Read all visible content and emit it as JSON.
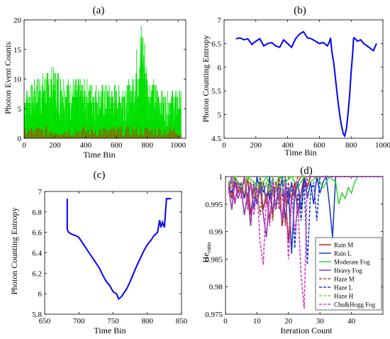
{
  "chart_data": [
    {
      "panel_label": "(a)",
      "type": "bar",
      "xlabel": "Time Bin",
      "ylabel": "Photon Event Counts",
      "xlim": [
        0,
        1050
      ],
      "ylim": [
        0,
        20
      ],
      "xticks": [
        0,
        200,
        400,
        600,
        800,
        1000
      ],
      "yticks": [
        0,
        5,
        10,
        15,
        20
      ],
      "series": [
        {
          "color": "#00e000",
          "description_points": {
            "x": [
              0,
              100,
              200,
              300,
              400,
              500,
              600,
              700,
              760,
              780,
              800,
              900,
              1000
            ],
            "y": [
              8,
              11,
              12,
              10,
              10,
              9,
              9,
              10,
              20,
              18,
              11,
              8,
              8
            ]
          }
        },
        {
          "color": "#ff0000"
        }
      ]
    },
    {
      "panel_label": "(b)",
      "type": "line",
      "xlabel": "Time Bin",
      "ylabel": "Photon Counting Entropy",
      "xlim": [
        0,
        1000
      ],
      "ylim": [
        4.5,
        7
      ],
      "xticks": [
        0,
        200,
        400,
        600,
        800,
        1000
      ],
      "yticks": [
        4.5,
        5,
        5.5,
        6,
        6.5,
        7
      ],
      "series": [
        {
          "color": "#0000ff",
          "x": [
            75,
            100,
            125,
            150,
            175,
            200,
            225,
            250,
            275,
            300,
            325,
            350,
            375,
            400,
            425,
            450,
            475,
            500,
            525,
            550,
            575,
            600,
            625,
            650,
            665,
            670,
            680,
            690,
            700,
            710,
            720,
            730,
            740,
            750,
            760,
            770,
            780,
            790,
            800,
            810,
            815,
            820,
            840,
            860,
            880,
            900,
            920,
            940,
            960
          ],
          "y": [
            6.6,
            6.62,
            6.58,
            6.6,
            6.48,
            6.55,
            6.6,
            6.45,
            6.5,
            6.52,
            6.45,
            6.42,
            6.58,
            6.5,
            6.42,
            6.6,
            6.7,
            6.75,
            6.62,
            6.6,
            6.55,
            6.5,
            6.52,
            6.45,
            6.55,
            6.62,
            6.3,
            6.1,
            5.8,
            5.5,
            5.2,
            4.95,
            4.75,
            4.6,
            4.55,
            4.7,
            5.0,
            5.4,
            5.9,
            6.3,
            6.6,
            6.62,
            6.55,
            6.58,
            6.5,
            6.45,
            6.4,
            6.35,
            6.5
          ]
        }
      ]
    },
    {
      "panel_label": "(c)",
      "type": "line",
      "xlabel": "Time Bin",
      "ylabel": "Photon Counting Entropy",
      "xlim": [
        650,
        850
      ],
      "ylim": [
        5.8,
        7
      ],
      "xticks": [
        650,
        700,
        750,
        800,
        850
      ],
      "yticks": [
        5.8,
        6,
        6.2,
        6.4,
        6.6,
        6.8,
        7
      ],
      "series": [
        {
          "color": "#0000ff",
          "x": [
            683,
            683,
            685,
            690,
            695,
            700,
            705,
            710,
            715,
            720,
            725,
            730,
            735,
            740,
            745,
            750,
            755,
            758,
            762,
            765,
            770,
            775,
            780,
            785,
            790,
            795,
            800,
            805,
            810,
            815,
            818,
            820,
            822,
            825,
            828,
            832,
            835
          ],
          "y": [
            6.93,
            6.63,
            6.6,
            6.58,
            6.57,
            6.55,
            6.5,
            6.45,
            6.4,
            6.35,
            6.3,
            6.25,
            6.18,
            6.12,
            6.08,
            6.02,
            6.0,
            5.95,
            5.97,
            6.0,
            6.05,
            6.12,
            6.2,
            6.28,
            6.35,
            6.42,
            6.48,
            6.52,
            6.57,
            6.6,
            6.72,
            6.65,
            6.7,
            6.65,
            6.93,
            6.93,
            6.93
          ]
        }
      ]
    },
    {
      "panel_label": "(d)",
      "type": "line",
      "xlabel": "Iteration Count",
      "ylabel": "He",
      "ylabel_sub": "ratio",
      "xlim": [
        0,
        50
      ],
      "ylim": [
        0.975,
        1
      ],
      "xticks": [
        0,
        10,
        20,
        30,
        40
      ],
      "yticks": [
        0.975,
        0.98,
        0.985,
        0.99,
        0.995,
        1
      ],
      "legend_position": "bottom-right",
      "series": [
        {
          "name": "Rain M",
          "color": "#b22222",
          "dash": "solid",
          "x": [
            1,
            2,
            3,
            4,
            5,
            6,
            7,
            8,
            9,
            10,
            11,
            12,
            13,
            14,
            15,
            16,
            17,
            18,
            19,
            20,
            21,
            22,
            23,
            24,
            25,
            26,
            27,
            28,
            50
          ],
          "y": [
            0.999,
            0.996,
            1,
            0.997,
            0.999,
            0.996,
            1,
            0.993,
            0.998,
            0.995,
            0.999,
            0.994,
            0.997,
            0.992,
            0.998,
            0.994,
            1,
            0.991,
            0.997,
            0.988,
            0.996,
            0.999,
            0.993,
            0.997,
            1,
            0.998,
            1,
            1,
            1
          ]
        },
        {
          "name": "Rain L",
          "color": "#1f3cc8",
          "dash": "solid",
          "x": [
            1,
            2,
            3,
            4,
            5,
            6,
            7,
            8,
            9,
            10,
            11,
            12,
            13,
            14,
            15,
            16,
            17,
            18,
            19,
            20,
            21,
            22,
            23,
            24,
            25,
            26,
            27,
            28,
            29,
            30,
            31,
            32,
            33,
            34,
            35,
            50
          ],
          "y": [
            0.998,
            1,
            0.995,
            0.999,
            0.997,
            1,
            0.996,
            0.999,
            0.994,
            1,
            0.997,
            0.999,
            0.995,
            1,
            0.993,
            0.999,
            0.996,
            1,
            0.992,
            0.998,
            0.986,
            0.997,
            0.999,
            0.994,
            1,
            0.996,
            0.999,
            0.995,
            1,
            0.997,
            0.999,
            1,
            0.995,
            0.989,
            1,
            1
          ]
        },
        {
          "name": "Moderate Fog",
          "color": "#3cd23c",
          "dash": "solid",
          "x": [
            1,
            3,
            5,
            7,
            9,
            11,
            13,
            15,
            17,
            19,
            21,
            23,
            25,
            27,
            29,
            31,
            33,
            35,
            36,
            37,
            38,
            39,
            40,
            41,
            42,
            50
          ],
          "y": [
            0.999,
            1,
            0.998,
            1,
            0.999,
            0.998,
            1,
            0.997,
            1,
            0.999,
            1,
            0.998,
            1,
            0.999,
            1,
            0.998,
            1,
            0.999,
            0.995,
            0.997,
            0.996,
            0.998,
            0.997,
            0.999,
            1,
            1
          ]
        },
        {
          "name": "Heavy Fog",
          "color": "#8c3cb4",
          "dash": "solid",
          "x": [
            1,
            2,
            3,
            4,
            5,
            6,
            7,
            8,
            9,
            10,
            11,
            12,
            13,
            14,
            15,
            16,
            17,
            18,
            19,
            20,
            21,
            22,
            23,
            24,
            25,
            50
          ],
          "y": [
            0.998,
            0.994,
            0.999,
            0.996,
            0.998,
            0.993,
            0.997,
            0.991,
            0.999,
            0.995,
            0.998,
            0.993,
            0.989,
            0.997,
            0.993,
            0.999,
            0.996,
            0.992,
            0.998,
            0.995,
            0.999,
            0.996,
            0.999,
            1,
            1,
            1
          ]
        },
        {
          "name": "Haze M",
          "color": "#a0522d",
          "dash": "dashed",
          "x": [
            1,
            2,
            3,
            4,
            5,
            6,
            7,
            8,
            9,
            10,
            11,
            12,
            13,
            14,
            15,
            16,
            17,
            18,
            19,
            20,
            21,
            22,
            23,
            24,
            50
          ],
          "y": [
            0.998,
            0.999,
            0.995,
            0.999,
            0.997,
            1,
            0.995,
            0.999,
            0.996,
            0.998,
            0.993,
            0.999,
            0.995,
            0.998,
            0.992,
            0.999,
            0.994,
            0.997,
            0.991,
            0.999,
            0.995,
            0.998,
            1,
            1,
            1
          ]
        },
        {
          "name": "Haze L",
          "color": "#1f3cc8",
          "dash": "dashed",
          "x": [
            1,
            2,
            3,
            4,
            5,
            6,
            7,
            8,
            9,
            10,
            11,
            12,
            13,
            14,
            15,
            16,
            17,
            18,
            19,
            20,
            21,
            22,
            23,
            24,
            25,
            26,
            27,
            28,
            29,
            30,
            50
          ],
          "y": [
            0.999,
            0.997,
            1,
            0.998,
            0.999,
            0.996,
            1,
            0.998,
            0.999,
            0.995,
            1,
            0.997,
            0.999,
            0.996,
            1,
            0.994,
            0.999,
            0.997,
            1,
            0.995,
            0.999,
            0.987,
            0.997,
            0.992,
            0.999,
            0.984,
            0.997,
            0.999,
            0.992,
            1,
            1
          ]
        },
        {
          "name": "Haze H",
          "color": "#9acd32",
          "dash": "dashed",
          "x": [
            1,
            2,
            3,
            4,
            5,
            6,
            7,
            8,
            9,
            10,
            11,
            12,
            13,
            14,
            15,
            16,
            17,
            18,
            19,
            20,
            50
          ],
          "y": [
            0.999,
            0.998,
            1,
            0.998,
            0.999,
            0.997,
            1,
            0.998,
            0.999,
            0.996,
            1,
            0.998,
            0.999,
            0.997,
            1,
            0.998,
            0.999,
            0.997,
            1,
            1,
            1
          ]
        },
        {
          "name": "Chu&Hogg Fog",
          "color": "#d23cc8",
          "dash": "dashed",
          "x": [
            1,
            2,
            3,
            4,
            5,
            6,
            7,
            8,
            9,
            10,
            11,
            12,
            13,
            14,
            15,
            16,
            17,
            18,
            19,
            20,
            21,
            22,
            23,
            24,
            25,
            26,
            50
          ],
          "y": [
            0.997,
            1,
            0.995,
            0.999,
            0.996,
            1,
            0.994,
            0.999,
            0.993,
            0.998,
            0.988,
            0.984,
            0.997,
            0.991,
            0.999,
            0.994,
            0.998,
            0.992,
            0.999,
            0.985,
            0.997,
            0.99,
            0.995,
            0.982,
            0.976,
            1,
            1
          ]
        }
      ]
    }
  ]
}
